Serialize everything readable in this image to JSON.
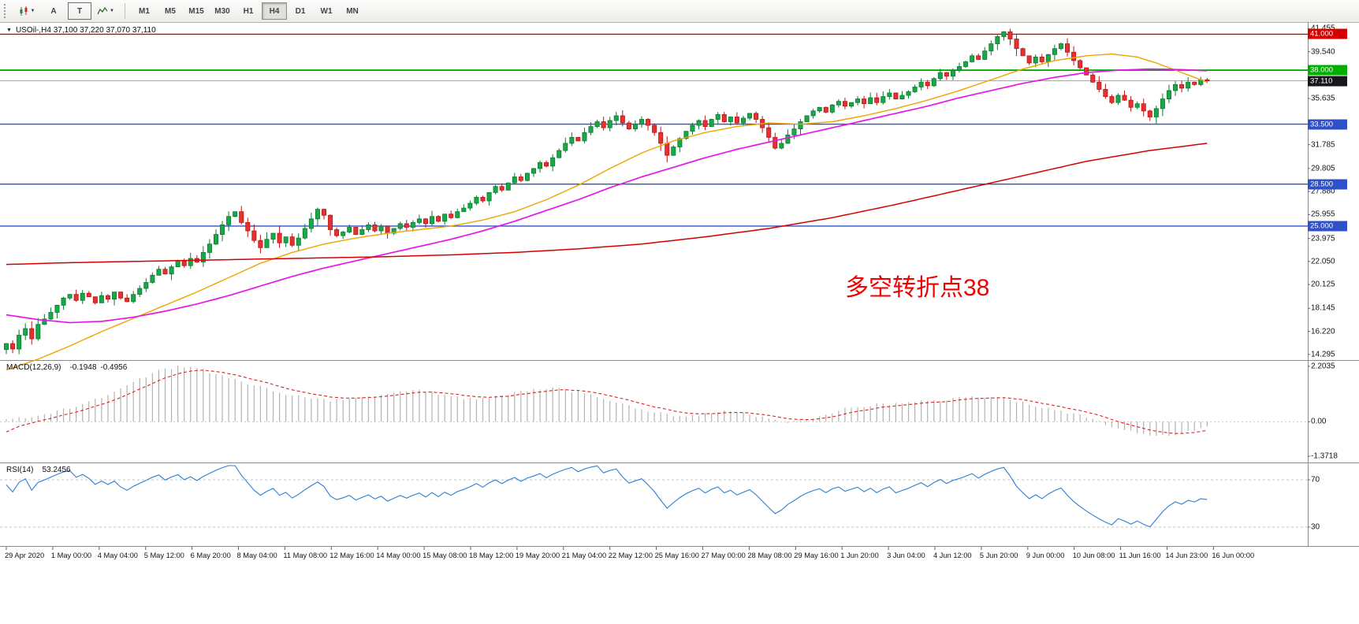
{
  "toolbar": {
    "tools": {
      "arrow": "A",
      "text": "T"
    },
    "timeframes": [
      "M1",
      "M5",
      "M15",
      "M30",
      "H1",
      "H4",
      "D1",
      "W1",
      "MN"
    ],
    "active_timeframe": "H4"
  },
  "main_chart": {
    "header": "USOil-,H4  37,100 37,220 37,070 37,110",
    "annotation": {
      "text": "多空转折点38",
      "color": "#f10000"
    },
    "price_axis": {
      "ticks": [
        41.455,
        39.54,
        35.635,
        31.785,
        29.805,
        27.88,
        25.955,
        23.975,
        22.05,
        20.125,
        18.145,
        16.22,
        14.295
      ],
      "levels": [
        {
          "value": 41.0,
          "label": "41.000",
          "color": "#d40000"
        },
        {
          "value": 38.0,
          "label": "38.000",
          "color": "#00ae00"
        },
        {
          "value": 33.5,
          "label": "33.500",
          "color": "#2e50c8"
        },
        {
          "value": 28.5,
          "label": "28.500",
          "color": "#2e50c8"
        },
        {
          "value": 25.0,
          "label": "25.000",
          "color": "#2e50c8"
        }
      ],
      "current_price": {
        "value": 37.11,
        "label": "37.110",
        "color": "#16161f"
      }
    }
  },
  "macd_panel": {
    "label": "MACD(12,26,9)",
    "value_main": "-0.1948",
    "value_signal": "-0.4956",
    "axis": {
      "top": "2.2035",
      "zero": "0.00",
      "bottom": "-1.3718"
    }
  },
  "rsi_panel": {
    "label": "RSI(14)",
    "value": "53.2456",
    "levels": [
      "70",
      "30"
    ]
  },
  "chart_data": {
    "type": "candlestick",
    "symbol": "USOil-",
    "timeframe": "H4",
    "title": "USOil-,H4  37,100 37,220 37,070 37,110",
    "y_range_display": [
      14.295,
      41.455
    ],
    "closes": [
      15.2,
      14.75,
      15.9,
      16.45,
      15.6,
      16.8,
      17.25,
      17.8,
      18.4,
      19.0,
      19.3,
      18.8,
      19.4,
      19.1,
      18.6,
      19.2,
      18.9,
      19.5,
      19.0,
      18.7,
      19.3,
      19.8,
      20.3,
      20.9,
      21.4,
      21.0,
      21.6,
      22.1,
      21.7,
      22.3,
      22.0,
      22.8,
      23.5,
      24.3,
      25.1,
      25.8,
      26.2,
      25.3,
      24.6,
      23.8,
      23.2,
      23.9,
      24.4,
      23.6,
      24.1,
      23.4,
      24.0,
      24.8,
      25.6,
      26.4,
      25.9,
      24.7,
      24.2,
      24.5,
      24.9,
      24.3,
      24.7,
      25.1,
      24.6,
      25.0,
      24.4,
      24.8,
      25.2,
      24.9,
      25.3,
      25.6,
      25.2,
      25.8,
      25.4,
      26.0,
      25.7,
      26.2,
      26.5,
      26.9,
      27.4,
      27.1,
      27.8,
      28.3,
      28.0,
      28.6,
      29.1,
      28.8,
      29.4,
      29.8,
      30.3,
      30.0,
      30.7,
      31.3,
      31.9,
      32.4,
      32.1,
      32.8,
      33.3,
      33.7,
      33.2,
      33.8,
      34.2,
      33.6,
      33.1,
      33.5,
      33.9,
      33.4,
      32.8,
      31.9,
      30.9,
      31.6,
      32.3,
      32.9,
      33.4,
      33.8,
      33.3,
      33.9,
      34.3,
      33.7,
      34.1,
      33.6,
      34.0,
      34.4,
      33.9,
      33.2,
      32.4,
      31.5,
      31.9,
      32.6,
      33.1,
      33.7,
      34.2,
      34.6,
      34.9,
      34.5,
      35.1,
      35.4,
      35.0,
      35.3,
      35.6,
      35.2,
      35.7,
      35.3,
      35.8,
      36.1,
      35.6,
      35.9,
      36.2,
      36.6,
      37.0,
      36.7,
      37.3,
      37.8,
      37.5,
      38.0,
      38.3,
      38.7,
      39.2,
      38.9,
      39.6,
      40.2,
      40.8,
      41.2,
      40.6,
      39.8,
      39.2,
      38.6,
      39.1,
      38.7,
      39.3,
      39.8,
      40.2,
      39.5,
      38.8,
      38.2,
      37.6,
      37.0,
      36.4,
      35.8,
      35.3,
      35.9,
      35.5,
      34.9,
      35.2,
      34.6,
      34.1,
      34.8,
      35.6,
      36.3,
      36.8,
      36.5,
      37.0,
      36.8,
      37.2,
      37.11
    ],
    "moving_averages": [
      {
        "name": "ma-fast",
        "color": "#efa400",
        "points": [
          [
            0,
            13.0
          ],
          [
            5,
            13.9
          ],
          [
            10,
            15.0
          ],
          [
            15,
            16.2
          ],
          [
            20,
            17.3
          ],
          [
            25,
            18.4
          ],
          [
            30,
            19.5
          ],
          [
            35,
            20.7
          ],
          [
            40,
            21.9
          ],
          [
            45,
            22.8
          ],
          [
            50,
            23.5
          ],
          [
            55,
            24.0
          ],
          [
            60,
            24.4
          ],
          [
            65,
            24.7
          ],
          [
            70,
            25.0
          ],
          [
            75,
            25.5
          ],
          [
            80,
            26.2
          ],
          [
            85,
            27.2
          ],
          [
            90,
            28.4
          ],
          [
            95,
            29.8
          ],
          [
            100,
            31.1
          ],
          [
            105,
            32.1
          ],
          [
            110,
            32.8
          ],
          [
            115,
            33.3
          ],
          [
            120,
            33.6
          ],
          [
            125,
            33.5
          ],
          [
            130,
            33.7
          ],
          [
            135,
            34.2
          ],
          [
            140,
            34.8
          ],
          [
            145,
            35.5
          ],
          [
            150,
            36.3
          ],
          [
            155,
            37.2
          ],
          [
            160,
            38.1
          ],
          [
            165,
            38.8
          ],
          [
            170,
            39.2
          ],
          [
            174,
            39.35
          ],
          [
            178,
            39.1
          ],
          [
            181,
            38.6
          ],
          [
            184,
            38.0
          ],
          [
            187,
            37.4
          ],
          [
            189,
            37.0
          ]
        ]
      },
      {
        "name": "ma-medium",
        "color": "#e617e6",
        "points": [
          [
            0,
            17.6
          ],
          [
            5,
            17.2
          ],
          [
            10,
            16.95
          ],
          [
            15,
            17.05
          ],
          [
            20,
            17.4
          ],
          [
            25,
            17.9
          ],
          [
            30,
            18.5
          ],
          [
            35,
            19.2
          ],
          [
            40,
            20.0
          ],
          [
            45,
            20.8
          ],
          [
            50,
            21.5
          ],
          [
            55,
            22.1
          ],
          [
            60,
            22.7
          ],
          [
            65,
            23.3
          ],
          [
            70,
            23.9
          ],
          [
            75,
            24.6
          ],
          [
            80,
            25.4
          ],
          [
            85,
            26.3
          ],
          [
            90,
            27.2
          ],
          [
            95,
            28.2
          ],
          [
            100,
            29.1
          ],
          [
            105,
            29.9
          ],
          [
            110,
            30.7
          ],
          [
            115,
            31.4
          ],
          [
            120,
            32.0
          ],
          [
            125,
            32.6
          ],
          [
            130,
            33.2
          ],
          [
            135,
            33.8
          ],
          [
            140,
            34.4
          ],
          [
            145,
            35.0
          ],
          [
            150,
            35.7
          ],
          [
            155,
            36.3
          ],
          [
            160,
            36.9
          ],
          [
            165,
            37.4
          ],
          [
            170,
            37.8
          ],
          [
            175,
            38.0
          ],
          [
            180,
            38.1
          ],
          [
            185,
            38.05
          ],
          [
            189,
            37.95
          ]
        ]
      },
      {
        "name": "ma-slow",
        "color": "#d40000",
        "points": [
          [
            0,
            21.8
          ],
          [
            10,
            21.95
          ],
          [
            20,
            22.05
          ],
          [
            30,
            22.15
          ],
          [
            40,
            22.25
          ],
          [
            50,
            22.35
          ],
          [
            60,
            22.45
          ],
          [
            70,
            22.6
          ],
          [
            80,
            22.8
          ],
          [
            90,
            23.1
          ],
          [
            100,
            23.5
          ],
          [
            110,
            24.1
          ],
          [
            120,
            24.8
          ],
          [
            130,
            25.7
          ],
          [
            140,
            26.8
          ],
          [
            150,
            28.0
          ],
          [
            160,
            29.2
          ],
          [
            170,
            30.4
          ],
          [
            180,
            31.3
          ],
          [
            189,
            31.9
          ]
        ]
      }
    ],
    "macd_histogram": [
      [
        0,
        0.05
      ],
      [
        6,
        0.3
      ],
      [
        12,
        0.7
      ],
      [
        18,
        1.3
      ],
      [
        23,
        1.95
      ],
      [
        27,
        2.2
      ],
      [
        31,
        2.05
      ],
      [
        36,
        1.7
      ],
      [
        41,
        1.3
      ],
      [
        46,
        1.0
      ],
      [
        51,
        0.85
      ],
      [
        56,
        1.0
      ],
      [
        61,
        1.15
      ],
      [
        65,
        1.25
      ],
      [
        69,
        1.05
      ],
      [
        73,
        0.9
      ],
      [
        78,
        1.05
      ],
      [
        83,
        1.3
      ],
      [
        87,
        1.35
      ],
      [
        91,
        1.1
      ],
      [
        95,
        0.8
      ],
      [
        99,
        0.55
      ],
      [
        103,
        0.35
      ],
      [
        107,
        0.2
      ],
      [
        110,
        0.3
      ],
      [
        113,
        0.45
      ],
      [
        116,
        0.35
      ],
      [
        119,
        0.15
      ],
      [
        122,
        -0.05
      ],
      [
        125,
        0.05
      ],
      [
        128,
        0.25
      ],
      [
        131,
        0.45
      ],
      [
        134,
        0.6
      ],
      [
        138,
        0.7
      ],
      [
        142,
        0.75
      ],
      [
        146,
        0.85
      ],
      [
        150,
        0.95
      ],
      [
        154,
        1.0
      ],
      [
        158,
        0.9
      ],
      [
        162,
        0.6
      ],
      [
        166,
        0.45
      ],
      [
        170,
        0.15
      ],
      [
        174,
        -0.2
      ],
      [
        178,
        -0.45
      ],
      [
        181,
        -0.6
      ],
      [
        184,
        -0.5
      ],
      [
        187,
        -0.32
      ],
      [
        189,
        -0.19
      ]
    ],
    "x_axis_labels": [
      "29 Apr 2020",
      "1 May 00:00",
      "4 May 04:00",
      "5 May 12:00",
      "6 May 20:00",
      "8 May 04:00",
      "11 May 08:00",
      "12 May 16:00",
      "14 May 00:00",
      "15 May 08:00",
      "18 May 12:00",
      "19 May 20:00",
      "21 May 04:00",
      "22 May 12:00",
      "25 May 16:00",
      "27 May 00:00",
      "28 May 08:00",
      "29 May 16:00",
      "1 Jun 20:00",
      "3 Jun 04:00",
      "4 Jun 12:00",
      "5 Jun 20:00",
      "9 Jun 00:00",
      "10 Jun 08:00",
      "11 Jun 16:00",
      "14 Jun 23:00",
      "16 Jun 00:00"
    ]
  }
}
